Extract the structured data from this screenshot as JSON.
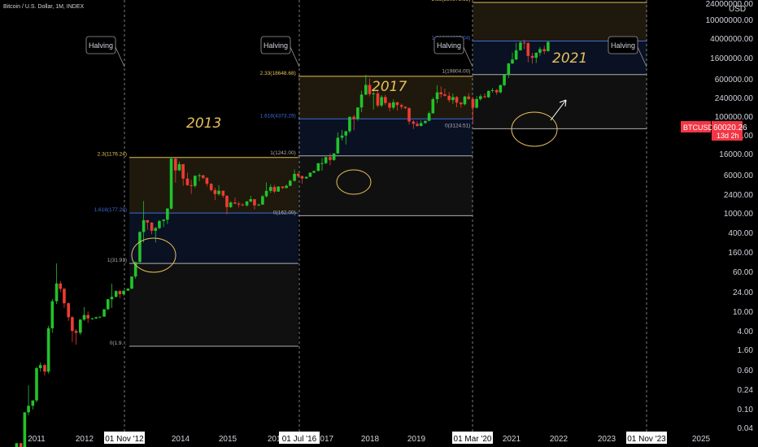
{
  "header": {
    "symbol_title": "Bitcoin / U.S. Dollar, 1M, INDEX"
  },
  "price_tag": {
    "symbol": "BTCUSD",
    "price": "60020.26",
    "countdown": "13d 2h",
    "color": "#f23645"
  },
  "y_axis": {
    "unit": "USD",
    "labels": [
      "24000000.00",
      "10000000.00",
      "4000000.00",
      "1600000.00",
      "600000.00",
      "240000.00",
      "100000.00",
      "40000.00",
      "16000.00",
      "6000.00",
      "2400.00",
      "1000.00",
      "400.00",
      "160.00",
      "60.00",
      "24.00",
      "10.00",
      "4.00",
      "1.60",
      "0.60",
      "0.24",
      "0.10",
      "0.04"
    ]
  },
  "x_axis": {
    "labels": [
      "2011",
      "2012",
      "2014",
      "2015",
      "2016",
      "2017",
      "2018",
      "2019",
      "2021",
      "2022",
      "2023",
      "2025"
    ],
    "date_tags": [
      "01 Nov '12",
      "01 Jul '16",
      "01 Mar '20",
      "01 Nov '23"
    ]
  },
  "halvings": [
    {
      "label": "Halving",
      "date": "01 Nov '12"
    },
    {
      "label": "Halving",
      "date": "01 Jul '16"
    },
    {
      "label": "Halving",
      "date": "01 Mar '20"
    },
    {
      "label": "Halving",
      "date": "01 Nov '23"
    }
  ],
  "cycle_labels": [
    "2013",
    "2017",
    "2021"
  ],
  "colors": {
    "up": "#26a69a",
    "up_candle": "#22c32b",
    "down": "#ef3b32",
    "fib_top": "#e8c05a",
    "fib_1618": "#3f6bd9",
    "fib_gray": "#b0b0b0",
    "arrow": "#ffffff"
  },
  "chart_data": {
    "type": "candlestick",
    "title": "Bitcoin / U.S. Dollar, 1M, INDEX",
    "y_scale": "log",
    "ylabel": "USD",
    "fib_levels": [
      {
        "cycle": "2013",
        "from": 2012.95,
        "to": 2016.5,
        "levels": [
          {
            "label": "2.3(1176.24)",
            "value": 1176.24,
            "color": "#e8c05a"
          },
          {
            "label": "1.618(177.28)",
            "value": 177.28,
            "color": "#3f6bd9"
          },
          {
            "label": "1(31.91)",
            "value": 31.91,
            "color": "#b0b0b0"
          },
          {
            "label": "0(1.9…",
            "value": 1.9,
            "color": "#b0b0b0"
          }
        ]
      },
      {
        "cycle": "2017",
        "from": 2016.5,
        "to": 2020.17,
        "levels": [
          {
            "label": "2.33(18648.68)",
            "value": 18648.68,
            "color": "#e8c05a"
          },
          {
            "label": "1.618(4373.29)",
            "value": 4373.29,
            "color": "#3f6bd9"
          },
          {
            "label": "1(1242.00)",
            "value": 1242.0,
            "color": "#b0b0b0"
          },
          {
            "label": "0(162.00)",
            "value": 162.0,
            "color": "#b0b0b0"
          }
        ]
      },
      {
        "cycle": "2021",
        "from": 2020.17,
        "to": 2023.83,
        "levels": [
          {
            "label": "2.33(230873.63)",
            "value": 230873.63,
            "color": "#e8c05a"
          },
          {
            "label": "1.618(61997.04)",
            "value": 61997.04,
            "color": "#3f6bd9"
          },
          {
            "label": "1(19804.00)",
            "value": 19804.0,
            "color": "#b0b0b0"
          },
          {
            "label": "0(3124.51)",
            "value": 3124.51,
            "color": "#b0b0b0"
          }
        ]
      }
    ],
    "candles": [
      [
        2010.58,
        0.06,
        0.07,
        0.05,
        0.07
      ],
      [
        2010.67,
        0.07,
        0.07,
        0.06,
        0.06
      ],
      [
        2010.75,
        0.06,
        0.2,
        0.06,
        0.2
      ],
      [
        2010.83,
        0.2,
        0.5,
        0.18,
        0.25
      ],
      [
        2010.92,
        0.25,
        0.3,
        0.22,
        0.3
      ],
      [
        2011.0,
        0.3,
        0.95,
        0.28,
        0.9
      ],
      [
        2011.08,
        0.9,
        1.1,
        0.8,
        1.0
      ],
      [
        2011.17,
        1.0,
        1.05,
        0.7,
        0.8
      ],
      [
        2011.25,
        0.8,
        3.8,
        0.75,
        3.5
      ],
      [
        2011.33,
        3.5,
        9.5,
        3.0,
        8.8
      ],
      [
        2011.42,
        8.8,
        31.9,
        8.0,
        16.1
      ],
      [
        2011.5,
        16.1,
        17.5,
        12.0,
        13.4
      ],
      [
        2011.58,
        13.4,
        14.0,
        7.0,
        8.2
      ],
      [
        2011.67,
        8.2,
        8.5,
        4.5,
        5.1
      ],
      [
        2011.75,
        5.1,
        5.3,
        2.2,
        3.2
      ],
      [
        2011.83,
        3.2,
        3.4,
        2.0,
        3.0
      ],
      [
        2011.92,
        3.0,
        4.8,
        2.8,
        4.7
      ],
      [
        2012.0,
        4.7,
        7.2,
        4.5,
        5.5
      ],
      [
        2012.08,
        5.5,
        6.2,
        4.2,
        4.9
      ],
      [
        2012.17,
        4.9,
        5.0,
        4.7,
        4.9
      ],
      [
        2012.25,
        4.9,
        5.2,
        4.8,
        5.1
      ],
      [
        2012.33,
        5.1,
        5.2,
        4.9,
        5.2
      ],
      [
        2012.42,
        5.2,
        6.7,
        5.2,
        6.7
      ],
      [
        2012.5,
        6.7,
        9.5,
        6.5,
        9.4
      ],
      [
        2012.58,
        9.4,
        16.0,
        7.0,
        10.2
      ],
      [
        2012.67,
        10.2,
        12.8,
        10.0,
        12.4
      ],
      [
        2012.75,
        12.4,
        12.9,
        9.8,
        11.2
      ],
      [
        2012.83,
        11.2,
        12.6,
        10.6,
        12.6
      ],
      [
        2012.92,
        12.6,
        13.7,
        12.5,
        13.5
      ],
      [
        2013.0,
        13.5,
        20.4,
        13.3,
        20.4
      ],
      [
        2013.08,
        20.4,
        33.4,
        19.0,
        33.4
      ],
      [
        2013.17,
        33.4,
        95.0,
        32.0,
        93.0
      ],
      [
        2013.25,
        93.0,
        266.0,
        65.0,
        139.0
      ],
      [
        2013.33,
        139.0,
        139.0,
        100.0,
        128.0
      ],
      [
        2013.42,
        128.0,
        130.0,
        86.0,
        97.0
      ],
      [
        2013.5,
        97.0,
        111.0,
        65.0,
        106.0
      ],
      [
        2013.58,
        106.0,
        140.0,
        102.0,
        135.0
      ],
      [
        2013.67,
        135.0,
        145.0,
        110.0,
        141.0
      ],
      [
        2013.75,
        141.0,
        210.0,
        122.0,
        206.0
      ],
      [
        2013.83,
        206.0,
        1176.0,
        200.0,
        1130.0
      ],
      [
        2013.92,
        1130.0,
        1150.0,
        500.0,
        757.0
      ],
      [
        2014.0,
        757.0,
        1020.0,
        740.0,
        935.0
      ],
      [
        2014.08,
        935.0,
        940.0,
        450.0,
        573.0
      ],
      [
        2014.17,
        573.0,
        700.0,
        450.0,
        457.0
      ],
      [
        2014.25,
        457.0,
        550.0,
        340.0,
        447.0
      ],
      [
        2014.33,
        447.0,
        640.0,
        420.0,
        629.0
      ],
      [
        2014.42,
        629.0,
        680.0,
        525.0,
        640.0
      ],
      [
        2014.5,
        640.0,
        650.0,
        560.0,
        587.0
      ],
      [
        2014.58,
        587.0,
        600.0,
        440.0,
        480.0
      ],
      [
        2014.67,
        480.0,
        490.0,
        370.0,
        387.0
      ],
      [
        2014.75,
        387.0,
        420.0,
        275.0,
        338.0
      ],
      [
        2014.83,
        338.0,
        460.0,
        320.0,
        379.0
      ],
      [
        2014.92,
        379.0,
        380.0,
        300.0,
        320.0
      ],
      [
        2015.0,
        320.0,
        320.0,
        170.0,
        217.0
      ],
      [
        2015.08,
        217.0,
        265.0,
        210.0,
        254.0
      ],
      [
        2015.17,
        254.0,
        300.0,
        240.0,
        244.0
      ],
      [
        2015.25,
        244.0,
        260.0,
        215.0,
        236.0
      ],
      [
        2015.33,
        236.0,
        247.0,
        225.0,
        230.0
      ],
      [
        2015.42,
        230.0,
        268.0,
        220.0,
        263.0
      ],
      [
        2015.5,
        263.0,
        317.0,
        255.0,
        284.0
      ],
      [
        2015.58,
        284.0,
        285.0,
        200.0,
        230.0
      ],
      [
        2015.67,
        230.0,
        245.0,
        225.0,
        236.0
      ],
      [
        2015.75,
        236.0,
        330.0,
        235.0,
        314.0
      ],
      [
        2015.83,
        314.0,
        502.0,
        300.0,
        377.0
      ],
      [
        2015.92,
        377.0,
        470.0,
        350.0,
        430.0
      ],
      [
        2016.0,
        430.0,
        460.0,
        350.0,
        368.0
      ],
      [
        2016.08,
        368.0,
        440.0,
        365.0,
        437.0
      ],
      [
        2016.17,
        437.0,
        440.0,
        400.0,
        416.0
      ],
      [
        2016.25,
        416.0,
        467.0,
        410.0,
        448.0
      ],
      [
        2016.33,
        448.0,
        550.0,
        440.0,
        531.0
      ],
      [
        2016.42,
        531.0,
        780.0,
        520.0,
        673.0
      ],
      [
        2016.5,
        673.0,
        705.0,
        600.0,
        624.0
      ],
      [
        2016.58,
        624.0,
        630.0,
        480.0,
        575.0
      ],
      [
        2016.67,
        575.0,
        612.0,
        570.0,
        609.0
      ],
      [
        2016.75,
        609.0,
        710.0,
        605.0,
        700.0
      ],
      [
        2016.83,
        700.0,
        750.0,
        690.0,
        742.0
      ],
      [
        2016.92,
        742.0,
        975.0,
        740.0,
        966.0
      ],
      [
        2017.0,
        966.0,
        1150.0,
        750.0,
        970.0
      ],
      [
        2017.08,
        970.0,
        1200.0,
        935.0,
        1190.0
      ],
      [
        2017.17,
        1190.0,
        1350.0,
        900.0,
        1080.0
      ],
      [
        2017.25,
        1080.0,
        1350.0,
        1050.0,
        1350.0
      ],
      [
        2017.33,
        1350.0,
        2760.0,
        1330.0,
        2300.0
      ],
      [
        2017.42,
        2300.0,
        3000.0,
        2100.0,
        2480.0
      ],
      [
        2017.5,
        2480.0,
        2920.0,
        1830.0,
        2870.0
      ],
      [
        2017.58,
        2870.0,
        4700.0,
        2700.0,
        4700.0
      ],
      [
        2017.67,
        4700.0,
        4980.0,
        2970.0,
        4340.0
      ],
      [
        2017.75,
        4340.0,
        6470.0,
        4100.0,
        6450.0
      ],
      [
        2017.83,
        6450.0,
        11400.0,
        5500.0,
        10000.0
      ],
      [
        2017.92,
        10000.0,
        19700.0,
        9800.0,
        13900.0
      ],
      [
        2018.0,
        13900.0,
        17200.0,
        9400.0,
        10200.0
      ],
      [
        2018.08,
        10200.0,
        11800.0,
        6000.0,
        10400.0
      ],
      [
        2018.17,
        10400.0,
        11700.0,
        6500.0,
        6900.0
      ],
      [
        2018.25,
        6900.0,
        9800.0,
        6500.0,
        9200.0
      ],
      [
        2018.33,
        9200.0,
        9900.0,
        7000.0,
        7500.0
      ],
      [
        2018.42,
        7500.0,
        7800.0,
        5700.0,
        6400.0
      ],
      [
        2018.5,
        6400.0,
        8500.0,
        6000.0,
        7700.0
      ],
      [
        2018.58,
        7700.0,
        7800.0,
        5800.0,
        7000.0
      ],
      [
        2018.67,
        7000.0,
        7400.0,
        6100.0,
        6600.0
      ],
      [
        2018.75,
        6600.0,
        6700.0,
        6100.0,
        6300.0
      ],
      [
        2018.83,
        6300.0,
        6500.0,
        3600.0,
        4000.0
      ],
      [
        2018.92,
        4000.0,
        4200.0,
        3100.0,
        3700.0
      ],
      [
        2019.0,
        3700.0,
        4100.0,
        3350.0,
        3440.0
      ],
      [
        2019.08,
        3440.0,
        4200.0,
        3380.0,
        3800.0
      ],
      [
        2019.17,
        3800.0,
        4100.0,
        3700.0,
        4100.0
      ],
      [
        2019.25,
        4100.0,
        5600.0,
        4050.0,
        5300.0
      ],
      [
        2019.33,
        5300.0,
        9100.0,
        5200.0,
        8550.0
      ],
      [
        2019.42,
        8550.0,
        13800.0,
        7450.0,
        10800.0
      ],
      [
        2019.5,
        10800.0,
        13200.0,
        9000.0,
        10100.0
      ],
      [
        2019.58,
        10100.0,
        12300.0,
        9400.0,
        9600.0
      ],
      [
        2019.67,
        9600.0,
        10900.0,
        7700.0,
        8300.0
      ],
      [
        2019.75,
        8300.0,
        10400.0,
        7300.0,
        9200.0
      ],
      [
        2019.83,
        9200.0,
        9500.0,
        6500.0,
        7600.0
      ],
      [
        2019.92,
        7600.0,
        7800.0,
        6400.0,
        7200.0
      ],
      [
        2020.0,
        7200.0,
        9600.0,
        6900.0,
        9350.0
      ],
      [
        2020.08,
        9350.0,
        10500.0,
        8400.0,
        8600.0
      ],
      [
        2020.17,
        8600.0,
        9200.0,
        3800.0,
        6400.0
      ],
      [
        2020.25,
        6400.0,
        9500.0,
        6200.0,
        8600.0
      ],
      [
        2020.33,
        8600.0,
        10100.0,
        8100.0,
        9450.0
      ],
      [
        2020.42,
        9450.0,
        10400.0,
        8900.0,
        9140.0
      ],
      [
        2020.5,
        9140.0,
        11500.0,
        8900.0,
        11350.0
      ],
      [
        2020.58,
        11350.0,
        12500.0,
        10700.0,
        11650.0
      ],
      [
        2020.67,
        11650.0,
        12100.0,
        9900.0,
        10800.0
      ],
      [
        2020.75,
        10800.0,
        14100.0,
        10400.0,
        13800.0
      ],
      [
        2020.83,
        13800.0,
        19800.0,
        13200.0,
        19700.0
      ],
      [
        2020.92,
        19700.0,
        29300.0,
        17600.0,
        28900.0
      ],
      [
        2021.0,
        28900.0,
        41900.0,
        28100.0,
        33100.0
      ],
      [
        2021.08,
        33100.0,
        58300.0,
        32300.0,
        45200.0
      ],
      [
        2021.17,
        45200.0,
        61700.0,
        44900.0,
        58800.0
      ],
      [
        2021.25,
        58800.0,
        64800.0,
        47000.0,
        57700.0
      ],
      [
        2021.33,
        57700.0,
        59500.0,
        30000.0,
        37300.0
      ],
      [
        2021.42,
        37300.0,
        41300.0,
        28800.0,
        35000.0
      ],
      [
        2021.5,
        35000.0,
        42200.0,
        29300.0,
        41500.0
      ],
      [
        2021.58,
        41500.0,
        50500.0,
        37400.0,
        47100.0
      ],
      [
        2021.67,
        47100.0,
        52900.0,
        39600.0,
        43800.0
      ],
      [
        2021.75,
        43800.0,
        61500.0,
        43300.0,
        60020.26
      ]
    ],
    "annotations": [
      "Halving",
      "2013",
      "2017",
      "2021"
    ]
  }
}
